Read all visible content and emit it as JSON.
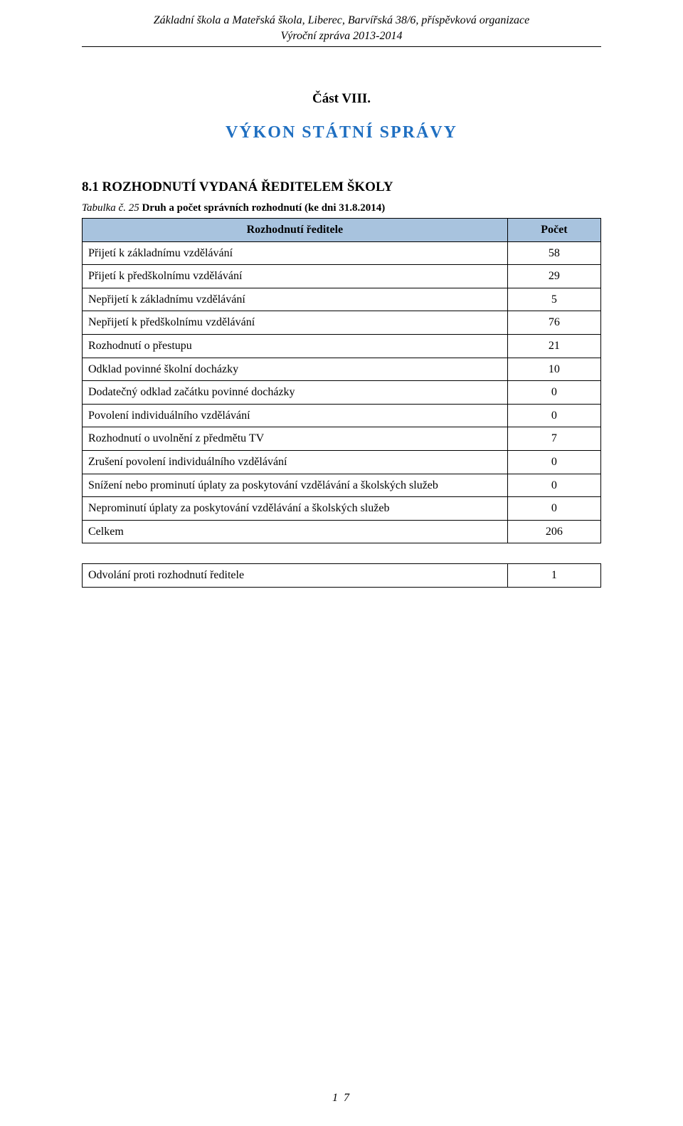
{
  "doc_header": {
    "line1": "Základní škola a Mateřská škola, Liberec, Barvířská 38/6, příspěvková organizace",
    "line2": "Výroční zpráva 2013-2014"
  },
  "part_label": "Část VIII.",
  "section_title": "VÝKON  STÁTNÍ  SPRÁVY",
  "section_title_color": "#1f6fc1",
  "subsection_heading": "8.1  ROZHODNUTÍ VYDANÁ ŘEDITELEM ŠKOLY",
  "table_caption": {
    "lead": "Tabulka č. 25  ",
    "main": "Druh a počet správních rozhodnutí (ke dni 31.8.2014)"
  },
  "main_table": {
    "header_bg": "#a8c3de",
    "col_label_width_pct": 82,
    "col_count_width_pct": 18,
    "headers": {
      "label": "Rozhodnutí ředitele",
      "count": "Počet"
    },
    "rows": [
      {
        "label": "Přijetí k základnímu vzdělávání",
        "count": "58"
      },
      {
        "label": "Přijetí k předškolnímu vzdělávání",
        "count": "29"
      },
      {
        "label": "Nepřijetí k základnímu vzdělávání",
        "count": "5"
      },
      {
        "label": "Nepřijetí k předškolnímu vzdělávání",
        "count": "76"
      },
      {
        "label": "Rozhodnutí o přestupu",
        "count": "21"
      },
      {
        "label": "Odklad povinné školní docházky",
        "count": "10"
      },
      {
        "label": "Dodatečný odklad začátku povinné docházky",
        "count": "0"
      },
      {
        "label": "Povolení individuálního vzdělávání",
        "count": "0"
      },
      {
        "label": "Rozhodnutí o uvolnění z předmětu TV",
        "count": "7"
      },
      {
        "label": "Zrušení povolení individuálního vzdělávání",
        "count": "0"
      },
      {
        "label": "Snížení nebo prominutí úplaty za poskytování vzdělávání a školských služeb",
        "count": "0"
      },
      {
        "label": "Neprominutí úplaty za poskytování vzdělávání a školských služeb",
        "count": "0"
      },
      {
        "label": "Celkem",
        "count": "206"
      }
    ]
  },
  "appeals_table": {
    "row": {
      "label": "Odvolání proti rozhodnutí ředitele",
      "count": "1"
    }
  },
  "page_number": "1 7"
}
